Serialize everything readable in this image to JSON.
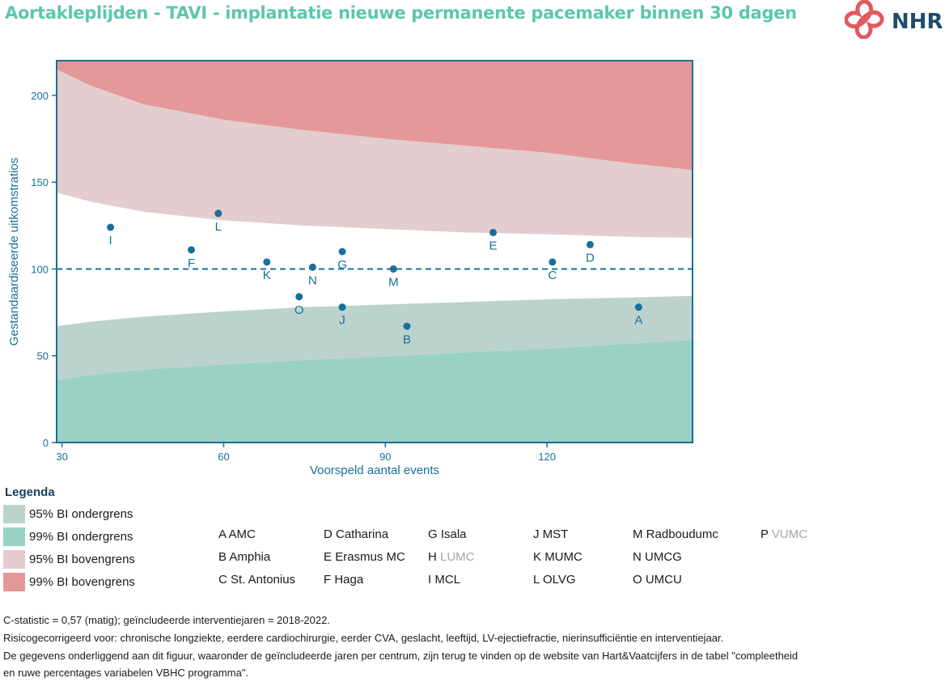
{
  "title": "Aortakleplijden - TAVI - implantatie nieuwe permanente pacemaker binnen 30 dagen",
  "logo": {
    "text": "NHR",
    "color": "#1e4d6b",
    "mark_color": "#e05a5f"
  },
  "chart_data": {
    "type": "scatter",
    "xlabel": "Voorspeld aantal events",
    "ylabel": "Gestandaardiseerde uitkomstratios",
    "xlim": [
      29,
      147
    ],
    "ylim": [
      0,
      220
    ],
    "x_ticks": [
      30,
      60,
      90,
      120
    ],
    "y_ticks": [
      0,
      50,
      100,
      150,
      200
    ],
    "reference_line": 100,
    "band_x": [
      29,
      35,
      45,
      60,
      75,
      90,
      105,
      120,
      135,
      147
    ],
    "bands": {
      "lower99": [
        36,
        39,
        42,
        45,
        47.5,
        49.5,
        52,
        54,
        57,
        59
      ],
      "lower95": [
        67,
        69.5,
        72.5,
        75.5,
        78,
        79.5,
        81,
        82.5,
        83.5,
        84.5
      ],
      "upper95": [
        144,
        139,
        133,
        128,
        125,
        123,
        121,
        120,
        118.5,
        118
      ],
      "upper99": [
        215,
        206,
        195,
        186,
        180,
        175,
        171,
        167,
        161,
        157
      ]
    },
    "points": [
      {
        "label": "A",
        "x": 137,
        "y": 78
      },
      {
        "label": "B",
        "x": 94,
        "y": 67
      },
      {
        "label": "C",
        "x": 121,
        "y": 104
      },
      {
        "label": "D",
        "x": 128,
        "y": 114
      },
      {
        "label": "E",
        "x": 110,
        "y": 121
      },
      {
        "label": "F",
        "x": 54,
        "y": 111
      },
      {
        "label": "G",
        "x": 82,
        "y": 110
      },
      {
        "label": "I",
        "x": 39,
        "y": 124
      },
      {
        "label": "J",
        "x": 82,
        "y": 78
      },
      {
        "label": "K",
        "x": 68,
        "y": 104
      },
      {
        "label": "L",
        "x": 59,
        "y": 132
      },
      {
        "label": "M",
        "x": 91.5,
        "y": 100
      },
      {
        "label": "N",
        "x": 76.5,
        "y": 101
      },
      {
        "label": "O",
        "x": 74,
        "y": 84
      }
    ],
    "colors": {
      "lower99": "#99d1c4",
      "lower95": "#bcd2cd",
      "upper95": "#e3cdce",
      "upper99": "#e59899",
      "point": "#1a6f99",
      "axis": "#1a6f99",
      "reference": "#1a6f99"
    }
  },
  "legend": {
    "title": "Legenda",
    "items": [
      {
        "label": "95% BI ondergrens",
        "color": "#bcd2cd"
      },
      {
        "label": "99% BI ondergrens",
        "color": "#99d1c4"
      },
      {
        "label": "95% BI bovengrens",
        "color": "#e3cdce"
      },
      {
        "label": "99% BI bovengrens",
        "color": "#e59899"
      }
    ]
  },
  "centers": [
    {
      "code": "A",
      "name": "AMC",
      "excluded": false
    },
    {
      "code": "B",
      "name": "Amphia",
      "excluded": false
    },
    {
      "code": "C",
      "name": "St. Antonius",
      "excluded": false
    },
    {
      "code": "D",
      "name": "Catharina",
      "excluded": false
    },
    {
      "code": "E",
      "name": "Erasmus MC",
      "excluded": false
    },
    {
      "code": "F",
      "name": "Haga",
      "excluded": false
    },
    {
      "code": "G",
      "name": "Isala",
      "excluded": false
    },
    {
      "code": "H",
      "name": "LUMC",
      "excluded": true
    },
    {
      "code": "I",
      "name": "MCL",
      "excluded": false
    },
    {
      "code": "J",
      "name": "MST",
      "excluded": false
    },
    {
      "code": "K",
      "name": "MUMC",
      "excluded": false
    },
    {
      "code": "L",
      "name": "OLVG",
      "excluded": false
    },
    {
      "code": "M",
      "name": "Radboudumc",
      "excluded": false
    },
    {
      "code": "N",
      "name": "UMCG",
      "excluded": false
    },
    {
      "code": "O",
      "name": "UMCU",
      "excluded": false
    },
    {
      "code": "P",
      "name": "VUMC",
      "excluded": true
    }
  ],
  "footnotes": [
    "C-statistic =  0,57 (matig); geïncludeerde interventiejaren = 2018-2022.",
    "Risicogecorrigeerd voor: chronische longziekte, eerdere cardiochirurgie, eerder CVA, geslacht, leeftijd, LV-ejectiefractie, nierinsufficiëntie en interventiejaar.",
    "De gegevens onderliggend aan dit figuur, waaronder de geïncludeerde jaren per centrum, zijn terug te vinden op de website van Hart&Vaatcijfers in de tabel \"compleetheid",
    "en ruwe percentages variabelen VBHC programma\"."
  ]
}
